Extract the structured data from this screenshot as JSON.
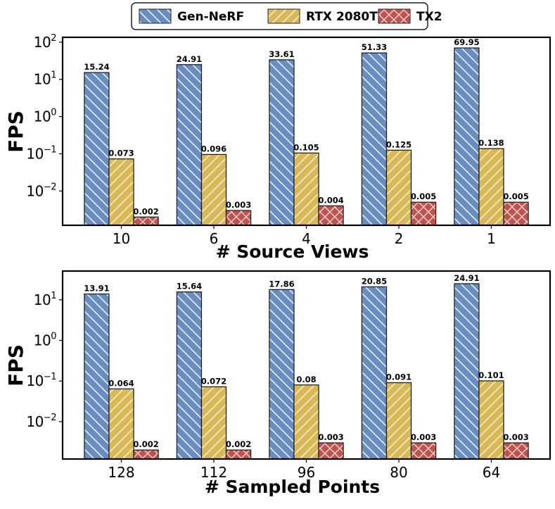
{
  "legend": {
    "placement": "top-center",
    "entries": [
      {
        "name": "Gen-NeRF",
        "color": "#6a8dc0",
        "hatch": "backslash"
      },
      {
        "name": "RTX 2080Ti",
        "color": "#d8b857",
        "hatch": "slash"
      },
      {
        "name": "TX2",
        "color": "#bd5450",
        "hatch": "cross"
      }
    ]
  },
  "chart_data": [
    {
      "type": "bar",
      "yscale": "log",
      "ylim": [
        0.0012,
        135
      ],
      "yticks": [
        0.01,
        0.1,
        1,
        10,
        100
      ],
      "ytick_labels": [
        {
          "base": "10",
          "exp": "−2"
        },
        {
          "base": "10",
          "exp": "−1"
        },
        {
          "base": "10",
          "exp": "0"
        },
        {
          "base": "10",
          "exp": "1"
        },
        {
          "base": "10",
          "exp": "2"
        }
      ],
      "xlabel": "# Source Views",
      "ylabel": "FPS",
      "categories": [
        "10",
        "6",
        "4",
        "2",
        "1"
      ],
      "series": [
        {
          "name": "Gen-NeRF",
          "values": [
            15.24,
            24.91,
            33.61,
            51.33,
            69.95
          ],
          "labels": [
            "15.24",
            "24.91",
            "33.61",
            "51.33",
            "69.95"
          ]
        },
        {
          "name": "RTX 2080Ti",
          "values": [
            0.073,
            0.096,
            0.105,
            0.125,
            0.138
          ],
          "labels": [
            "0.073",
            "0.096",
            "0.105",
            "0.125",
            "0.138"
          ]
        },
        {
          "name": "TX2",
          "values": [
            0.002,
            0.003,
            0.004,
            0.005,
            0.005
          ],
          "labels": [
            "0.002",
            "0.003",
            "0.004",
            "0.005",
            "0.005"
          ]
        }
      ],
      "grid": false
    },
    {
      "type": "bar",
      "yscale": "log",
      "ylim": [
        0.0012,
        51
      ],
      "yticks": [
        0.01,
        0.1,
        1,
        10
      ],
      "ytick_labels": [
        {
          "base": "10",
          "exp": "−2"
        },
        {
          "base": "10",
          "exp": "−1"
        },
        {
          "base": "10",
          "exp": "0"
        },
        {
          "base": "10",
          "exp": "1"
        }
      ],
      "xlabel": "# Sampled Points",
      "ylabel": "FPS",
      "categories": [
        "128",
        "112",
        "96",
        "80",
        "64"
      ],
      "series": [
        {
          "name": "Gen-NeRF",
          "values": [
            13.91,
            15.64,
            17.86,
            20.85,
            24.91
          ],
          "labels": [
            "13.91",
            "15.64",
            "17.86",
            "20.85",
            "24.91"
          ]
        },
        {
          "name": "RTX 2080Ti",
          "values": [
            0.064,
            0.072,
            0.08,
            0.091,
            0.101
          ],
          "labels": [
            "0.064",
            "0.072",
            "0.08",
            "0.091",
            "0.101"
          ]
        },
        {
          "name": "TX2",
          "values": [
            0.002,
            0.002,
            0.003,
            0.003,
            0.003
          ],
          "labels": [
            "0.002",
            "0.002",
            "0.003",
            "0.003",
            "0.003"
          ]
        }
      ],
      "grid": false
    }
  ]
}
